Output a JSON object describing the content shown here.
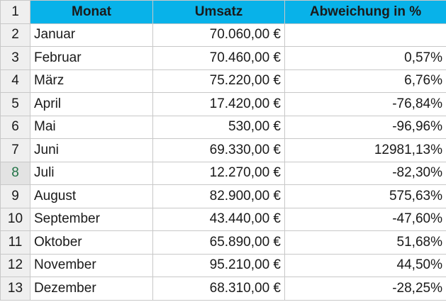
{
  "colors": {
    "header_fill": "#08b2e9",
    "row_header_fill": "#efefef",
    "active_row_marker": "#217346"
  },
  "header": {
    "row_number": "1",
    "monat": "Monat",
    "umsatz": "Umsatz",
    "abweichung": "Abweichung in %"
  },
  "active_row": "8",
  "rows": [
    {
      "row_number": "2",
      "monat": "Januar",
      "umsatz": "70.060,00 €",
      "abweichung": ""
    },
    {
      "row_number": "3",
      "monat": "Februar",
      "umsatz": "70.460,00 €",
      "abweichung": "0,57%"
    },
    {
      "row_number": "4",
      "monat": "März",
      "umsatz": "75.220,00 €",
      "abweichung": "6,76%"
    },
    {
      "row_number": "5",
      "monat": "April",
      "umsatz": "17.420,00 €",
      "abweichung": "-76,84%"
    },
    {
      "row_number": "6",
      "monat": "Mai",
      "umsatz": "530,00 €",
      "abweichung": "-96,96%"
    },
    {
      "row_number": "7",
      "monat": "Juni",
      "umsatz": "69.330,00 €",
      "abweichung": "12981,13%"
    },
    {
      "row_number": "8",
      "monat": "Juli",
      "umsatz": "12.270,00 €",
      "abweichung": "-82,30%"
    },
    {
      "row_number": "9",
      "monat": "August",
      "umsatz": "82.900,00 €",
      "abweichung": "575,63%"
    },
    {
      "row_number": "10",
      "monat": "September",
      "umsatz": "43.440,00 €",
      "abweichung": "-47,60%"
    },
    {
      "row_number": "11",
      "monat": "Oktober",
      "umsatz": "65.890,00 €",
      "abweichung": "51,68%"
    },
    {
      "row_number": "12",
      "monat": "November",
      "umsatz": "95.210,00 €",
      "abweichung": "44,50%"
    },
    {
      "row_number": "13",
      "monat": "Dezember",
      "umsatz": "68.310,00 €",
      "abweichung": "-28,25%"
    }
  ]
}
